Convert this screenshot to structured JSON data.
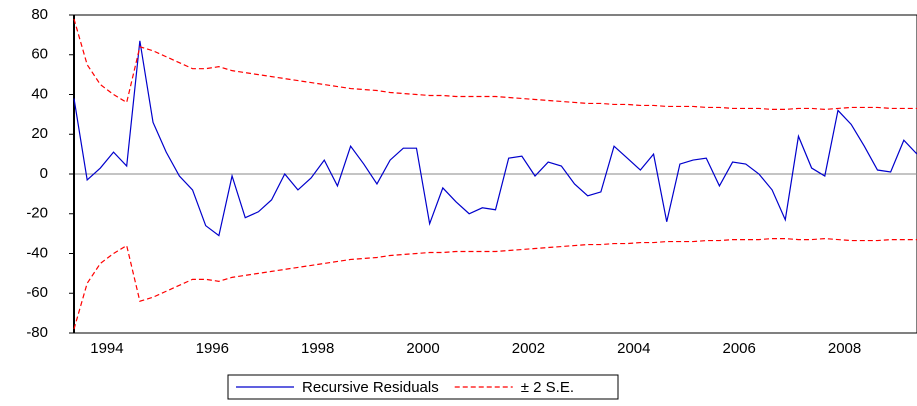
{
  "chart_data": {
    "type": "line",
    "categories": [
      null,
      "1994",
      null,
      null,
      null,
      null,
      null,
      null,
      null,
      "1996",
      null,
      null,
      null,
      null,
      null,
      null,
      null,
      "1998",
      null,
      null,
      null,
      null,
      null,
      null,
      null,
      "2000",
      null,
      null,
      null,
      null,
      null,
      null,
      null,
      "2002",
      null,
      null,
      null,
      null,
      null,
      null,
      null,
      "2004",
      null,
      null,
      null,
      null,
      null,
      null,
      null,
      "2006",
      null,
      null,
      null,
      null,
      null,
      null,
      null,
      "2008",
      null,
      null,
      null,
      null,
      null,
      null,
      null
    ],
    "series": [
      {
        "name": "Recursive Residuals",
        "color": "#0000cc",
        "values": [
          38,
          -3,
          3,
          11,
          4,
          67,
          26,
          11,
          -1,
          -8,
          -26,
          -31,
          -1,
          -22,
          -19,
          -13,
          0,
          -8,
          -2,
          7,
          -6,
          14,
          5,
          -5,
          7,
          13,
          13,
          -25,
          -7,
          -14,
          -20,
          -17,
          -18,
          8,
          9,
          -1,
          6,
          4,
          -5,
          -11,
          -9,
          14,
          8,
          2,
          10,
          -24,
          5,
          7,
          8,
          -6,
          6,
          5,
          0,
          -8,
          -23,
          19,
          3,
          -1,
          32,
          25,
          14,
          2,
          1,
          17,
          10
        ]
      },
      {
        "name": "± 2 S.E.",
        "color": "#ff0000",
        "dash": true,
        "values": [
          78,
          55,
          45,
          40,
          36,
          64,
          62,
          59,
          56,
          53,
          53,
          54,
          52,
          51,
          50,
          49,
          48,
          47,
          46,
          45,
          44,
          43,
          42.5,
          42,
          41,
          40.5,
          40,
          39.5,
          39.5,
          39,
          39,
          39,
          39,
          38.5,
          38,
          37.5,
          37,
          36.5,
          36,
          35.5,
          35.5,
          35,
          35,
          34.5,
          34.5,
          34,
          34,
          34,
          33.5,
          33.5,
          33,
          33,
          33,
          32.5,
          32.5,
          33,
          33,
          32.5,
          33,
          33.5,
          33.5,
          33.5,
          33,
          33,
          33
        ],
        "lower": [
          -78,
          -55,
          -45,
          -40,
          -36,
          -64,
          -62,
          -59,
          -56,
          -53,
          -53,
          -54,
          -52,
          -51,
          -50,
          -49,
          -48,
          -47,
          -46,
          -45,
          -44,
          -43,
          -42.5,
          -42,
          -41,
          -40.5,
          -40,
          -39.5,
          -39.5,
          -39,
          -39,
          -39,
          -39,
          -38.5,
          -38,
          -37.5,
          -37,
          -36.5,
          -36,
          -35.5,
          -35.5,
          -35,
          -35,
          -34.5,
          -34.5,
          -34,
          -34,
          -34,
          -33.5,
          -33.5,
          -33,
          -33,
          -33,
          -32.5,
          -32.5,
          -33,
          -33,
          -32.5,
          -33,
          -33.5,
          -33.5,
          -33.5,
          -33,
          -33,
          -33
        ]
      }
    ],
    "ylim": [
      -80,
      80
    ],
    "yticks": [
      -80,
      -60,
      -40,
      -20,
      0,
      20,
      40,
      60,
      80
    ],
    "zero_line": true
  }
}
